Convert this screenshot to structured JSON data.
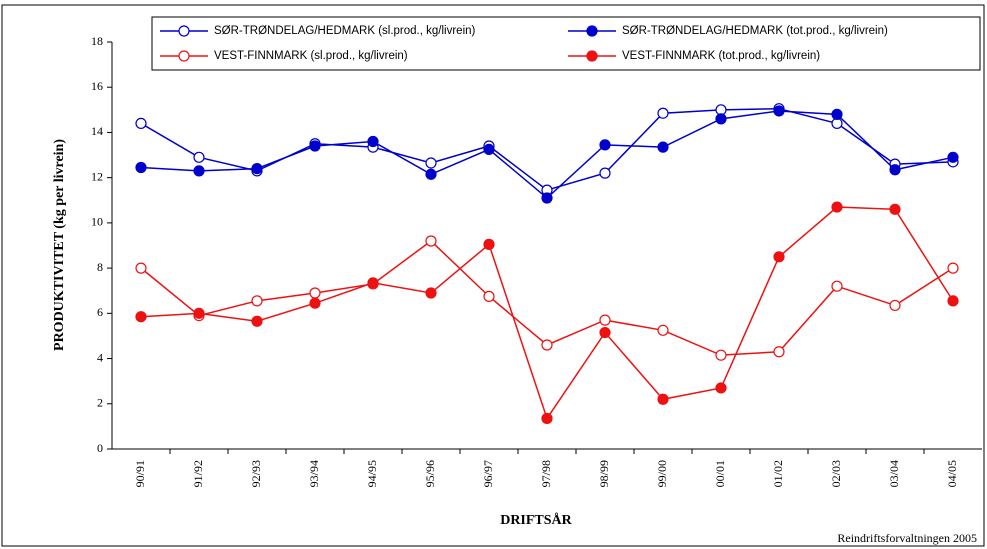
{
  "chart_data": {
    "type": "line",
    "y_label": "PRODUKTIVITET (kg per livrein)",
    "x_label": "DRIFTSÅR",
    "source": "Reindriftsforvaltningen 2005",
    "categories": [
      "90/91",
      "91/92",
      "92/93",
      "93/94",
      "94/95",
      "95/96",
      "96/97",
      "97/98",
      "98/99",
      "99/00",
      "00/01",
      "01/02",
      "02/03",
      "03/04",
      "04/05"
    ],
    "series": [
      {
        "name": "SØR-TRØNDELAG/HEDMARK (sl.prod., kg/livrein)",
        "color": "#0000cc",
        "filled": false,
        "values": [
          14.4,
          12.9,
          12.3,
          13.5,
          13.35,
          12.65,
          13.4,
          11.45,
          12.2,
          14.85,
          15.0,
          15.05,
          14.4,
          12.6,
          12.7
        ]
      },
      {
        "name": "SØR-TRØNDELAG/HEDMARK (tot.prod., kg/livrein)",
        "color": "#0000cc",
        "filled": true,
        "values": [
          12.45,
          12.3,
          12.4,
          13.4,
          13.6,
          12.15,
          13.25,
          11.1,
          13.45,
          13.35,
          14.6,
          14.95,
          14.8,
          12.35,
          12.9
        ]
      },
      {
        "name": "VEST-FINNMARK (sl.prod., kg/livrein)",
        "color": "#ee1111",
        "filled": false,
        "values": [
          8.0,
          5.9,
          6.55,
          6.9,
          7.3,
          9.2,
          6.75,
          4.6,
          5.7,
          5.25,
          4.15,
          4.3,
          7.2,
          6.35,
          8.0
        ]
      },
      {
        "name": "VEST-FINNMARK (tot.prod., kg/livrein)",
        "color": "#ee1111",
        "filled": true,
        "values": [
          5.85,
          6.0,
          5.65,
          6.45,
          7.35,
          6.9,
          9.05,
          1.35,
          5.15,
          2.2,
          2.7,
          8.5,
          10.7,
          10.6,
          6.55
        ]
      }
    ],
    "ylim": [
      0,
      18
    ],
    "yticks": [
      0,
      2,
      4,
      6,
      8,
      10,
      12,
      14,
      16,
      18
    ]
  }
}
